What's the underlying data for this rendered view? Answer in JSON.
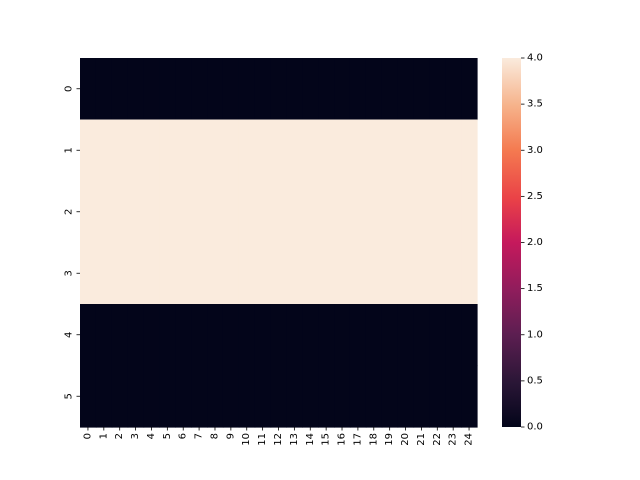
{
  "chart_data": {
    "type": "heatmap",
    "title": "",
    "xlabel": "",
    "ylabel": "",
    "x_labels": [
      "0",
      "1",
      "2",
      "3",
      "4",
      "5",
      "6",
      "7",
      "8",
      "9",
      "10",
      "11",
      "12",
      "13",
      "14",
      "15",
      "16",
      "17",
      "18",
      "19",
      "20",
      "21",
      "22",
      "23",
      "24"
    ],
    "y_labels": [
      "0",
      "1",
      "2",
      "3",
      "4",
      "5"
    ],
    "values": [
      [
        0,
        0,
        0,
        0,
        0,
        0,
        0,
        0,
        0,
        0,
        0,
        0,
        0,
        0,
        0,
        0,
        0,
        0,
        0,
        0,
        0,
        0,
        0,
        0,
        0
      ],
      [
        4,
        4,
        4,
        4,
        4,
        4,
        4,
        4,
        4,
        4,
        4,
        4,
        4,
        4,
        4,
        4,
        4,
        4,
        4,
        4,
        4,
        4,
        4,
        4,
        4
      ],
      [
        4,
        4,
        4,
        4,
        4,
        4,
        4,
        4,
        4,
        4,
        4,
        4,
        4,
        4,
        4,
        4,
        4,
        4,
        4,
        4,
        4,
        4,
        4,
        4,
        4
      ],
      [
        4,
        4,
        4,
        4,
        4,
        4,
        4,
        4,
        4,
        4,
        4,
        4,
        4,
        4,
        4,
        4,
        4,
        4,
        4,
        4,
        4,
        4,
        4,
        4,
        4
      ],
      [
        0,
        0,
        0,
        0,
        0,
        0,
        0,
        0,
        0,
        0,
        0,
        0,
        0,
        0,
        0,
        0,
        0,
        0,
        0,
        0,
        0,
        0,
        0,
        0,
        0
      ],
      [
        0,
        0,
        0,
        0,
        0,
        0,
        0,
        0,
        0,
        0,
        0,
        0,
        0,
        0,
        0,
        0,
        0,
        0,
        0,
        0,
        0,
        0,
        0,
        0,
        0
      ]
    ],
    "colorbar": {
      "range": [
        0.0,
        4.0
      ],
      "ticks": [
        "0.0",
        "0.5",
        "1.0",
        "1.5",
        "2.0",
        "2.5",
        "3.0",
        "3.5",
        "4.0"
      ],
      "colormap": "rocket",
      "low_color": "#03051a",
      "high_color": "#faebdd"
    },
    "grid": false,
    "legend": "colorbar-right"
  }
}
